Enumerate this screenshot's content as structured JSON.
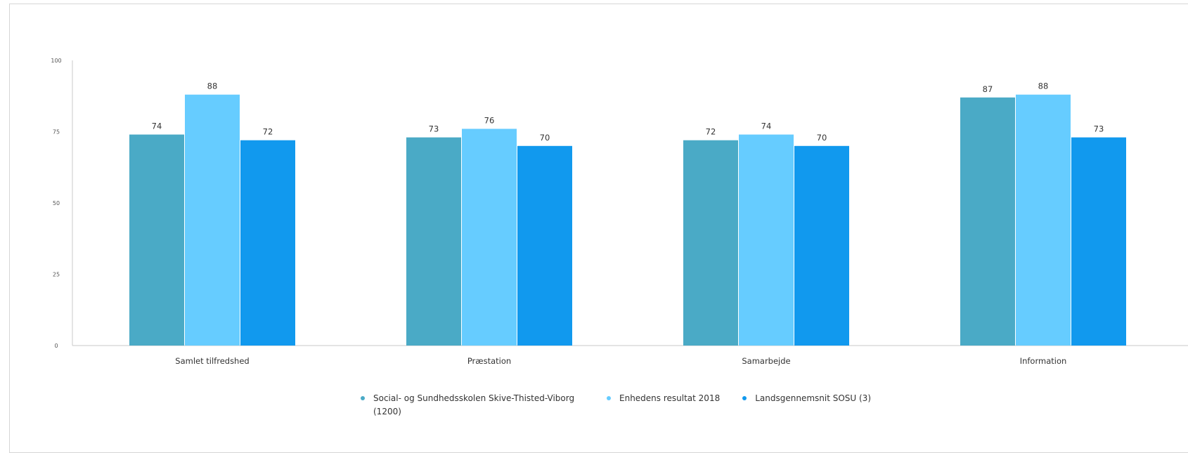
{
  "chart_data": {
    "type": "bar",
    "categories": [
      "Samlet tilfredshed",
      "Præstation",
      "Samarbejde",
      "Information"
    ],
    "series": [
      {
        "name": "Social- og Sundhedsskolen Skive-Thisted-Viborg (1200)",
        "color": "#4aaac6",
        "values": [
          74,
          73,
          72,
          87
        ]
      },
      {
        "name": "Enhedens resultat 2018",
        "color": "#66ccff",
        "values": [
          88,
          76,
          74,
          88
        ]
      },
      {
        "name": "Landsgennemsnit SOSU (3)",
        "color": "#1199ee",
        "values": [
          72,
          70,
          70,
          73
        ]
      }
    ],
    "ylim": [
      0,
      100
    ],
    "yticks": [
      0,
      25,
      50,
      75,
      100
    ],
    "grid": false,
    "legend_position": "bottom"
  },
  "legend": [
    {
      "label": "Social- og Sundhedsskolen Skive-Thisted-Viborg (1200)",
      "color": "#4aaac6"
    },
    {
      "label": "Enhedens resultat 2018",
      "color": "#66ccff"
    },
    {
      "label": "Landsgennemsnit SOSU (3)",
      "color": "#1199ee"
    }
  ]
}
